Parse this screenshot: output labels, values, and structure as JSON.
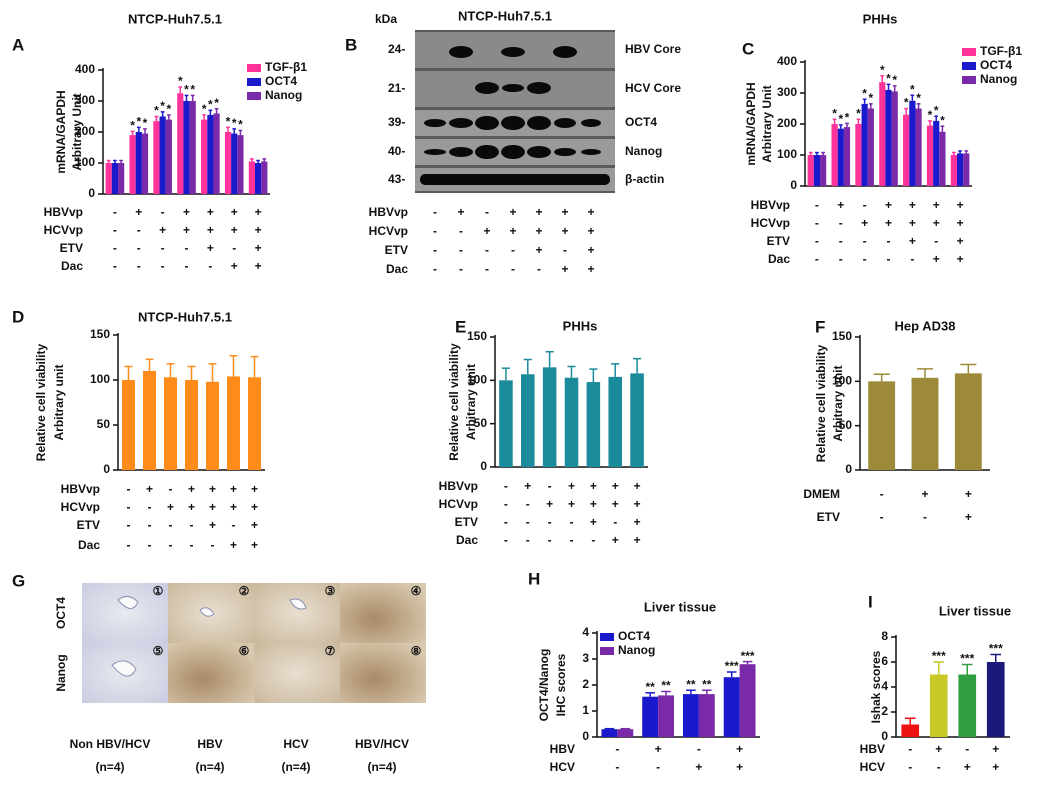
{
  "chart_data": [
    {
      "type": "bar",
      "panel": "A",
      "title": "NTCP-Huh7.5.1",
      "y_label": [
        "mRNA/GAPDH",
        "Arbitrary Unit"
      ],
      "ylim": [
        0,
        400
      ],
      "yticks": [
        0,
        100,
        200,
        300,
        400
      ],
      "conditions": [
        {
          "name": "HBVvp",
          "signs": [
            "-",
            "+",
            "-",
            "+",
            "+",
            "+",
            "+"
          ]
        },
        {
          "name": "HCVvp",
          "signs": [
            "-",
            "-",
            "+",
            "+",
            "+",
            "+",
            "+"
          ]
        },
        {
          "name": "ETV",
          "signs": [
            "-",
            "-",
            "-",
            "-",
            "+",
            "-",
            "+"
          ]
        },
        {
          "name": "Dac",
          "signs": [
            "-",
            "-",
            "-",
            "-",
            "-",
            "+",
            "+"
          ]
        }
      ],
      "series": [
        {
          "name": "TGF-β1",
          "color": "#ff3399",
          "values": [
            100,
            190,
            235,
            325,
            240,
            200,
            105
          ],
          "errors": [
            8,
            12,
            15,
            20,
            15,
            15,
            8
          ],
          "stars": [
            null,
            "*",
            "*",
            "*",
            "*",
            "*",
            null
          ]
        },
        {
          "name": "OCT4",
          "color": "#1a1acc",
          "values": [
            100,
            200,
            250,
            300,
            255,
            195,
            100
          ],
          "errors": [
            8,
            15,
            15,
            18,
            15,
            15,
            8
          ],
          "stars": [
            null,
            "*",
            "*",
            "*",
            "*",
            "*",
            null
          ]
        },
        {
          "name": "Nanog",
          "color": "#7a2aa8",
          "values": [
            100,
            195,
            240,
            300,
            260,
            190,
            105
          ],
          "errors": [
            8,
            15,
            15,
            18,
            15,
            15,
            8
          ],
          "stars": [
            null,
            "*",
            "*",
            "*",
            "*",
            "*",
            null
          ]
        }
      ]
    },
    {
      "type": "bar",
      "panel": "C",
      "title": "PHHs",
      "y_label": [
        "mRNA/GAPDH",
        "Arbitrary Unit"
      ],
      "ylim": [
        0,
        400
      ],
      "yticks": [
        0,
        100,
        200,
        300,
        400
      ],
      "conditions": [
        {
          "name": "HBVvp",
          "signs": [
            "-",
            "+",
            "-",
            "+",
            "+",
            "+",
            "+"
          ]
        },
        {
          "name": "HCVvp",
          "signs": [
            "-",
            "-",
            "+",
            "+",
            "+",
            "+",
            "+"
          ]
        },
        {
          "name": "ETV",
          "signs": [
            "-",
            "-",
            "-",
            "-",
            "+",
            "-",
            "+"
          ]
        },
        {
          "name": "Dac",
          "signs": [
            "-",
            "-",
            "-",
            "-",
            "-",
            "+",
            "+"
          ]
        }
      ],
      "series": [
        {
          "name": "TGF-β1",
          "color": "#ff3399",
          "values": [
            100,
            200,
            200,
            335,
            230,
            195,
            100
          ],
          "errors": [
            8,
            15,
            15,
            20,
            20,
            15,
            8
          ],
          "stars": [
            null,
            "*",
            "*",
            "*",
            "*",
            "*",
            null
          ]
        },
        {
          "name": "OCT4",
          "color": "#1a1acc",
          "values": [
            100,
            185,
            265,
            310,
            275,
            210,
            105
          ],
          "errors": [
            8,
            12,
            15,
            18,
            18,
            15,
            8
          ],
          "stars": [
            null,
            "*",
            "*",
            "*",
            "*",
            "*",
            null
          ]
        },
        {
          "name": "Nanog",
          "color": "#7a2aa8",
          "values": [
            100,
            190,
            250,
            305,
            250,
            175,
            105
          ],
          "errors": [
            8,
            12,
            15,
            18,
            15,
            18,
            8
          ],
          "stars": [
            null,
            "*",
            "*",
            "*",
            "*",
            "*",
            null
          ]
        }
      ]
    },
    {
      "type": "bar",
      "panel": "D",
      "title": "NTCP-Huh7.5.1",
      "y_label": [
        "Relative cell viability",
        "Arbitrary unit"
      ],
      "ylim": [
        0,
        150
      ],
      "yticks": [
        0,
        50,
        100,
        150
      ],
      "conditions": [
        {
          "name": "HBVvp",
          "signs": [
            "-",
            "+",
            "-",
            "+",
            "+",
            "+",
            "+"
          ]
        },
        {
          "name": "HCVvp",
          "signs": [
            "-",
            "-",
            "+",
            "+",
            "+",
            "+",
            "+"
          ]
        },
        {
          "name": "ETV",
          "signs": [
            "-",
            "-",
            "-",
            "-",
            "+",
            "-",
            "+"
          ]
        },
        {
          "name": "Dac",
          "signs": [
            "-",
            "-",
            "-",
            "-",
            "-",
            "+",
            "+"
          ]
        }
      ],
      "color": "#ff8c1a",
      "values": [
        100,
        110,
        103,
        100,
        98,
        104,
        103
      ],
      "errors": [
        15,
        13,
        15,
        15,
        20,
        23,
        23
      ]
    },
    {
      "type": "bar",
      "panel": "E",
      "title": "PHHs",
      "y_label": [
        "Relative cell viability",
        "Arbitrary unit"
      ],
      "ylim": [
        0,
        150
      ],
      "yticks": [
        0,
        50,
        100,
        150
      ],
      "conditions": [
        {
          "name": "HBVvp",
          "signs": [
            "-",
            "+",
            "-",
            "+",
            "+",
            "+",
            "+"
          ]
        },
        {
          "name": "HCVvp",
          "signs": [
            "-",
            "-",
            "+",
            "+",
            "+",
            "+",
            "+"
          ]
        },
        {
          "name": "ETV",
          "signs": [
            "-",
            "-",
            "-",
            "-",
            "+",
            "-",
            "+"
          ]
        },
        {
          "name": "Dac",
          "signs": [
            "-",
            "-",
            "-",
            "-",
            "-",
            "+",
            "+"
          ]
        }
      ],
      "color": "#1b8a9a",
      "values": [
        100,
        107,
        115,
        103,
        98,
        104,
        108
      ],
      "errors": [
        14,
        17,
        18,
        13,
        15,
        15,
        17
      ]
    },
    {
      "type": "bar",
      "panel": "F",
      "title": "Hep AD38",
      "y_label": [
        "Relative cell viability",
        "Arbitrary unit"
      ],
      "ylim": [
        0,
        150
      ],
      "yticks": [
        0,
        50,
        100,
        150
      ],
      "conditions": [
        {
          "name": "DMEM",
          "signs": [
            "-",
            "+",
            "+"
          ]
        },
        {
          "name": "ETV",
          "signs": [
            "-",
            "-",
            "+"
          ]
        }
      ],
      "color": "#9c8a3a",
      "values": [
        100,
        104,
        109
      ],
      "errors": [
        8,
        10,
        10
      ]
    },
    {
      "type": "bar",
      "panel": "H",
      "title": "Liver tissue",
      "y_label": [
        "OCT4/Nanog",
        "IHC scores"
      ],
      "ylim": [
        0,
        4
      ],
      "yticks": [
        0,
        1,
        2,
        3,
        4
      ],
      "conditions": [
        {
          "name": "HBV",
          "signs": [
            "-",
            "+",
            "-",
            "+"
          ]
        },
        {
          "name": "HCV",
          "signs": [
            "-",
            "-",
            "+",
            "+"
          ]
        }
      ],
      "series": [
        {
          "name": "OCT4",
          "color": "#1a1acc",
          "values": [
            0.3,
            1.55,
            1.65,
            2.3
          ],
          "errors": [
            0.02,
            0.15,
            0.15,
            0.2
          ],
          "stars": [
            null,
            "**",
            "**",
            "***"
          ]
        },
        {
          "name": "Nanog",
          "color": "#7a2aa8",
          "values": [
            0.3,
            1.6,
            1.65,
            2.8
          ],
          "errors": [
            0.02,
            0.15,
            0.15,
            0.1
          ],
          "stars": [
            null,
            "**",
            "**",
            "***"
          ]
        }
      ]
    },
    {
      "type": "bar",
      "panel": "I",
      "title": "Liver tissue",
      "y_label": [
        "Ishak scores"
      ],
      "ylim": [
        0,
        8
      ],
      "yticks": [
        0,
        2,
        4,
        6,
        8
      ],
      "conditions": [
        {
          "name": "HBV",
          "signs": [
            "-",
            "+",
            "-",
            "+"
          ]
        },
        {
          "name": "HCV",
          "signs": [
            "-",
            "-",
            "+",
            "+"
          ]
        }
      ],
      "colors": [
        "#ee1111",
        "#c8c828",
        "#2e9e3e",
        "#1a1a7a"
      ],
      "values": [
        1,
        5,
        5,
        6
      ],
      "errors": [
        0.5,
        1,
        0.8,
        0.6
      ],
      "stars": [
        null,
        "***",
        "***",
        "***"
      ]
    }
  ],
  "blot": {
    "panel": "B",
    "title": "NTCP-Huh7.5.1",
    "unit": "kDa",
    "rows": [
      {
        "mw": "24-",
        "label": "HBV Core"
      },
      {
        "mw": "21-",
        "label": "HCV Core"
      },
      {
        "mw": "39-",
        "label": "OCT4"
      },
      {
        "mw": "40-",
        "label": "Nanog"
      },
      {
        "mw": "43-",
        "label": "β-actin"
      }
    ],
    "conditions": [
      {
        "name": "HBVvp",
        "signs": [
          "-",
          "+",
          "-",
          "+",
          "+",
          "+",
          "+"
        ]
      },
      {
        "name": "HCVvp",
        "signs": [
          "-",
          "-",
          "+",
          "+",
          "+",
          "+",
          "+"
        ]
      },
      {
        "name": "ETV",
        "signs": [
          "-",
          "-",
          "-",
          "-",
          "+",
          "-",
          "+"
        ]
      },
      {
        "name": "Dac",
        "signs": [
          "-",
          "-",
          "-",
          "-",
          "-",
          "+",
          "+"
        ]
      }
    ]
  },
  "ihc": {
    "panel": "G",
    "row_labels": [
      "OCT4",
      "Nanog"
    ],
    "image_numbers": [
      "①",
      "②",
      "③",
      "④",
      "⑤",
      "⑥",
      "⑦",
      "⑧"
    ],
    "columns": [
      {
        "name": "Non HBV/HCV",
        "n": "(n=4)"
      },
      {
        "name": "HBV",
        "n": "(n=4)"
      },
      {
        "name": "HCV",
        "n": "(n=4)"
      },
      {
        "name": "HBV/HCV",
        "n": "(n=4)"
      }
    ]
  }
}
